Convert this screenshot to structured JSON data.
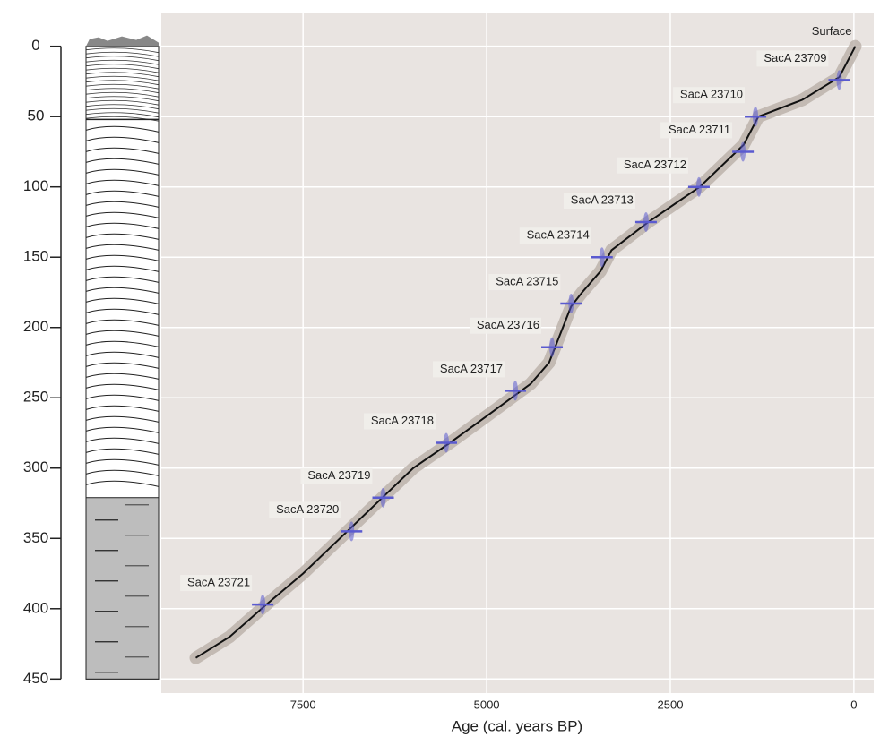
{
  "chart_data": {
    "type": "line",
    "x_label": "Age (cal. years BP)",
    "annotations": [
      "Surface"
    ],
    "x": [
      -20,
      200,
      700,
      1300,
      1500,
      2100,
      2800,
      3300,
      3450,
      3700,
      3850,
      4000,
      4150,
      4400,
      5000,
      5500,
      6000,
      6400,
      7000,
      7500,
      8000,
      8500,
      8960
    ],
    "values": [
      0,
      22,
      38,
      50,
      70,
      100,
      125,
      145,
      160,
      175,
      185,
      205,
      225,
      240,
      263,
      282,
      300,
      320,
      350,
      375,
      397,
      420,
      435
    ],
    "color": "#111111",
    "samples": {
      "names": [
        "SacA 23709",
        "SacA 23710",
        "SacA 23711",
        "SacA 23712",
        "SacA 23713",
        "SacA 23714",
        "SacA 23715",
        "SacA 23716",
        "SacA 23717",
        "SacA 23718",
        "SacA 23719",
        "SacA 23720",
        "SacA 23721"
      ],
      "x": [
        200,
        1340,
        1510,
        2110,
        2830,
        3430,
        3850,
        4110,
        4610,
        5550,
        6410,
        6840,
        8050
      ],
      "values": [
        24,
        50,
        75,
        100,
        125,
        150,
        183,
        214,
        245,
        282,
        321,
        345,
        397
      ],
      "color": "#5a5ad0"
    },
    "strata_boundaries": [
      52,
      321
    ],
    "xlim": [
      9430,
      -270
    ],
    "ylim": [
      -24,
      460
    ],
    "xticks": [
      7500,
      5000,
      2500,
      0
    ],
    "yticks": [
      0,
      50,
      100,
      150,
      200,
      250,
      300,
      350,
      400,
      450
    ],
    "grid": true
  }
}
